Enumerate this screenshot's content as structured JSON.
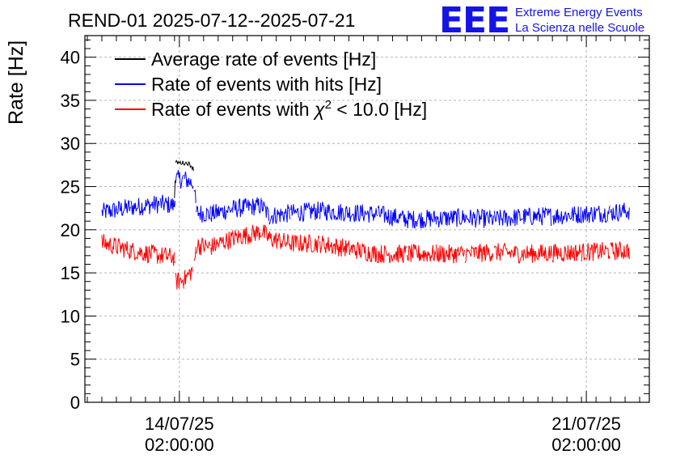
{
  "branding": {
    "logo_text": "EEE",
    "line1": "Extreme Energy Events",
    "line2": "La Scienza nelle Scuole",
    "color": "#1414e6"
  },
  "chart_data": {
    "type": "line",
    "title": "REND-01 2025-07-12--2025-07-21",
    "xlabel": "",
    "ylabel": "Rate [Hz]",
    "ylim": [
      0,
      42.5
    ],
    "y_ticks": [
      "0",
      "5",
      "10",
      "15",
      "20",
      "25",
      "30",
      "35",
      "40"
    ],
    "x_range": [
      "2025-07-12T11:00",
      "2025-07-22T04:00"
    ],
    "x_ticks": [
      {
        "date": "14/07/25",
        "time": "02:00:00",
        "at": "2025-07-14T02:00"
      },
      {
        "date": "21/07/25",
        "time": "02:00:00",
        "at": "2025-07-21T02:00"
      }
    ],
    "grid": true,
    "legend_position": "top-left",
    "legend": [
      {
        "label_pre": "Average rate of events [Hz]",
        "label_chi": "",
        "label_sup": "",
        "label_post": "",
        "color": "#000000"
      },
      {
        "label_pre": "Rate of events with hits [Hz]",
        "label_chi": "",
        "label_sup": "",
        "label_post": "",
        "color": "#0000ff"
      },
      {
        "label_pre": "Rate of events with ",
        "label_chi": "χ",
        "label_sup": "2",
        "label_post": " < 10.0 [Hz]",
        "color": "#ff0000"
      }
    ],
    "series": [
      {
        "name": "Average rate of events [Hz]",
        "color": "#000000",
        "noise": 0.25,
        "x": [
          "2025-07-13T12:00",
          "2025-07-13T18:00",
          "2025-07-14T00:00",
          "2025-07-14T00:30",
          "2025-07-14T06:00",
          "2025-07-14T08:00",
          "2025-07-14T09:00"
        ],
        "y": [
          null,
          null,
          23.5,
          27.8,
          27.7,
          27.0,
          null
        ]
      },
      {
        "name": "Rate of events with hits [Hz]",
        "color": "#0000ff",
        "noise": 1.1,
        "x": [
          "2025-07-12T18:00",
          "2025-07-13T06:00",
          "2025-07-13T18:00",
          "2025-07-14T00:00",
          "2025-07-14T00:30",
          "2025-07-14T04:00",
          "2025-07-14T08:00",
          "2025-07-14T09:00",
          "2025-07-14T15:00",
          "2025-07-15T00:00",
          "2025-07-15T12:00",
          "2025-07-15T15:00",
          "2025-07-16T00:00",
          "2025-07-16T12:00",
          "2025-07-17T00:00",
          "2025-07-17T12:00",
          "2025-07-18T00:00",
          "2025-07-18T12:00",
          "2025-07-19T00:00",
          "2025-07-19T12:00",
          "2025-07-20T00:00",
          "2025-07-20T12:00",
          "2025-07-21T00:00",
          "2025-07-21T12:00",
          "2025-07-21T20:00"
        ],
        "y": [
          22.0,
          22.6,
          23.0,
          22.8,
          25.8,
          25.9,
          25.3,
          22.0,
          21.8,
          22.4,
          22.8,
          21.6,
          21.9,
          22.2,
          22.0,
          21.8,
          21.2,
          21.3,
          21.4,
          21.2,
          21.5,
          21.6,
          21.8,
          22.0,
          22.2
        ]
      },
      {
        "name": "Rate of events with χ² < 10.0 [Hz]",
        "color": "#ff0000",
        "noise": 1.1,
        "x": [
          "2025-07-12T18:00",
          "2025-07-13T06:00",
          "2025-07-13T18:00",
          "2025-07-14T00:00",
          "2025-07-14T00:30",
          "2025-07-14T04:00",
          "2025-07-14T08:00",
          "2025-07-14T09:00",
          "2025-07-14T15:00",
          "2025-07-15T00:00",
          "2025-07-15T12:00",
          "2025-07-15T15:00",
          "2025-07-16T00:00",
          "2025-07-16T12:00",
          "2025-07-17T00:00",
          "2025-07-17T12:00",
          "2025-07-18T00:00",
          "2025-07-18T12:00",
          "2025-07-19T00:00",
          "2025-07-19T12:00",
          "2025-07-20T00:00",
          "2025-07-20T12:00",
          "2025-07-21T00:00",
          "2025-07-21T12:00",
          "2025-07-21T20:00"
        ],
        "y": [
          18.5,
          17.6,
          17.0,
          16.8,
          14.0,
          14.2,
          15.5,
          18.2,
          18.0,
          19.0,
          19.8,
          19.0,
          18.4,
          18.4,
          17.8,
          17.2,
          17.2,
          17.2,
          17.2,
          17.4,
          17.2,
          17.3,
          17.4,
          17.5,
          17.6
        ]
      }
    ]
  }
}
